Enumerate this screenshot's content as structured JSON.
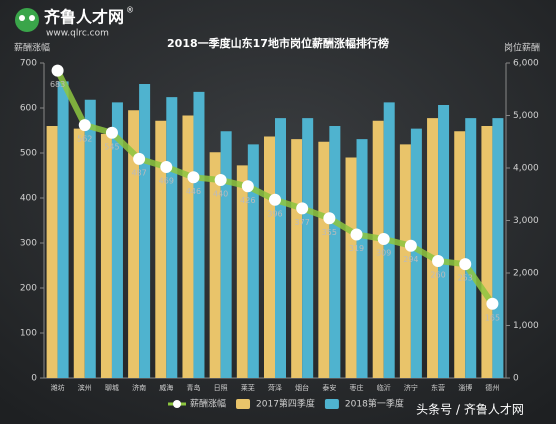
{
  "logo": {
    "name": "齐鲁人才网",
    "registered": "®",
    "url": "www.qlrc.com"
  },
  "watermark": "头条号 / 齐鲁人才网",
  "chart_data": {
    "type": "bar",
    "title": "2018一季度山东17地市岗位薪酬涨幅排行榜",
    "y_label": "薪酬涨幅",
    "y2_label": "岗位薪酬",
    "categories": [
      "潍坊",
      "滨州",
      "聊城",
      "济南",
      "威海",
      "青岛",
      "日照",
      "莱芜",
      "菏泽",
      "烟台",
      "泰安",
      "枣庄",
      "临沂",
      "济宁",
      "东营",
      "淄博",
      "德州"
    ],
    "series": [
      {
        "name": "薪酬涨幅",
        "type": "line",
        "color": "#8dc63f",
        "axis": "y",
        "values": [
          683,
          562,
          545,
          487,
          469,
          446,
          440,
          426,
          396,
          377,
          355,
          319,
          309,
          294,
          260,
          253,
          165
        ]
      },
      {
        "name": "2017第四季度",
        "type": "bar",
        "color": "#e9c46a",
        "axis": "y2",
        "values": [
          4800,
          4750,
          4650,
          5100,
          4900,
          5000,
          4300,
          4050,
          4600,
          4550,
          4500,
          4200,
          4900,
          4450,
          4950,
          4700,
          4800
        ]
      },
      {
        "name": "2018第一季度",
        "type": "bar",
        "color": "#4fb3cf",
        "axis": "y2",
        "values": [
          5650,
          5300,
          5250,
          5600,
          5350,
          5450,
          4700,
          4450,
          4950,
          4950,
          4800,
          4550,
          5250,
          4750,
          5200,
          4950,
          4950
        ]
      }
    ],
    "ylim": [
      0,
      700
    ],
    "yticks": [
      0,
      100,
      200,
      300,
      400,
      500,
      600,
      700
    ],
    "y2lim": [
      0,
      6000
    ],
    "y2ticks": [
      0,
      {
        "value": 1000,
        "label": "1,000"
      },
      {
        "value": 2000,
        "label": "2,000"
      },
      {
        "value": 3000,
        "label": "3,000"
      },
      {
        "value": 4000,
        "label": "4,000"
      },
      {
        "value": 5000,
        "label": "5,000"
      },
      {
        "value": 6000,
        "label": "6,000"
      }
    ],
    "legend": "bottom"
  }
}
